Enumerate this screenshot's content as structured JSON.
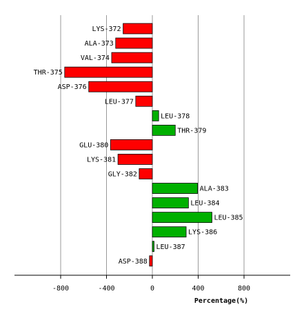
{
  "chart_data": {
    "type": "bar",
    "orientation": "horizontal",
    "categories": [
      "LYS-372",
      "ALA-373",
      "VAL-374",
      "THR-375",
      "ASP-376",
      "LEU-377",
      "LEU-378",
      "THR-379",
      "GLU-380",
      "LYS-381",
      "GLY-382",
      "ALA-383",
      "LEU-384",
      "LEU-385",
      "LYS-386",
      "LEU-387",
      "ASP-388"
    ],
    "values": [
      -255,
      -320,
      -355,
      -765,
      -555,
      -145,
      55,
      200,
      -365,
      -300,
      -115,
      395,
      315,
      520,
      295,
      15,
      -25
    ],
    "xlabel": "Percentage(%)",
    "xlim": [
      -1200,
      1200
    ],
    "xticks": [
      -800,
      -400,
      0,
      400,
      800
    ],
    "grid": true,
    "colors": {
      "positive": "#00b000",
      "negative": "#ff0000",
      "grid": "#999999",
      "axis": "#000000"
    }
  }
}
